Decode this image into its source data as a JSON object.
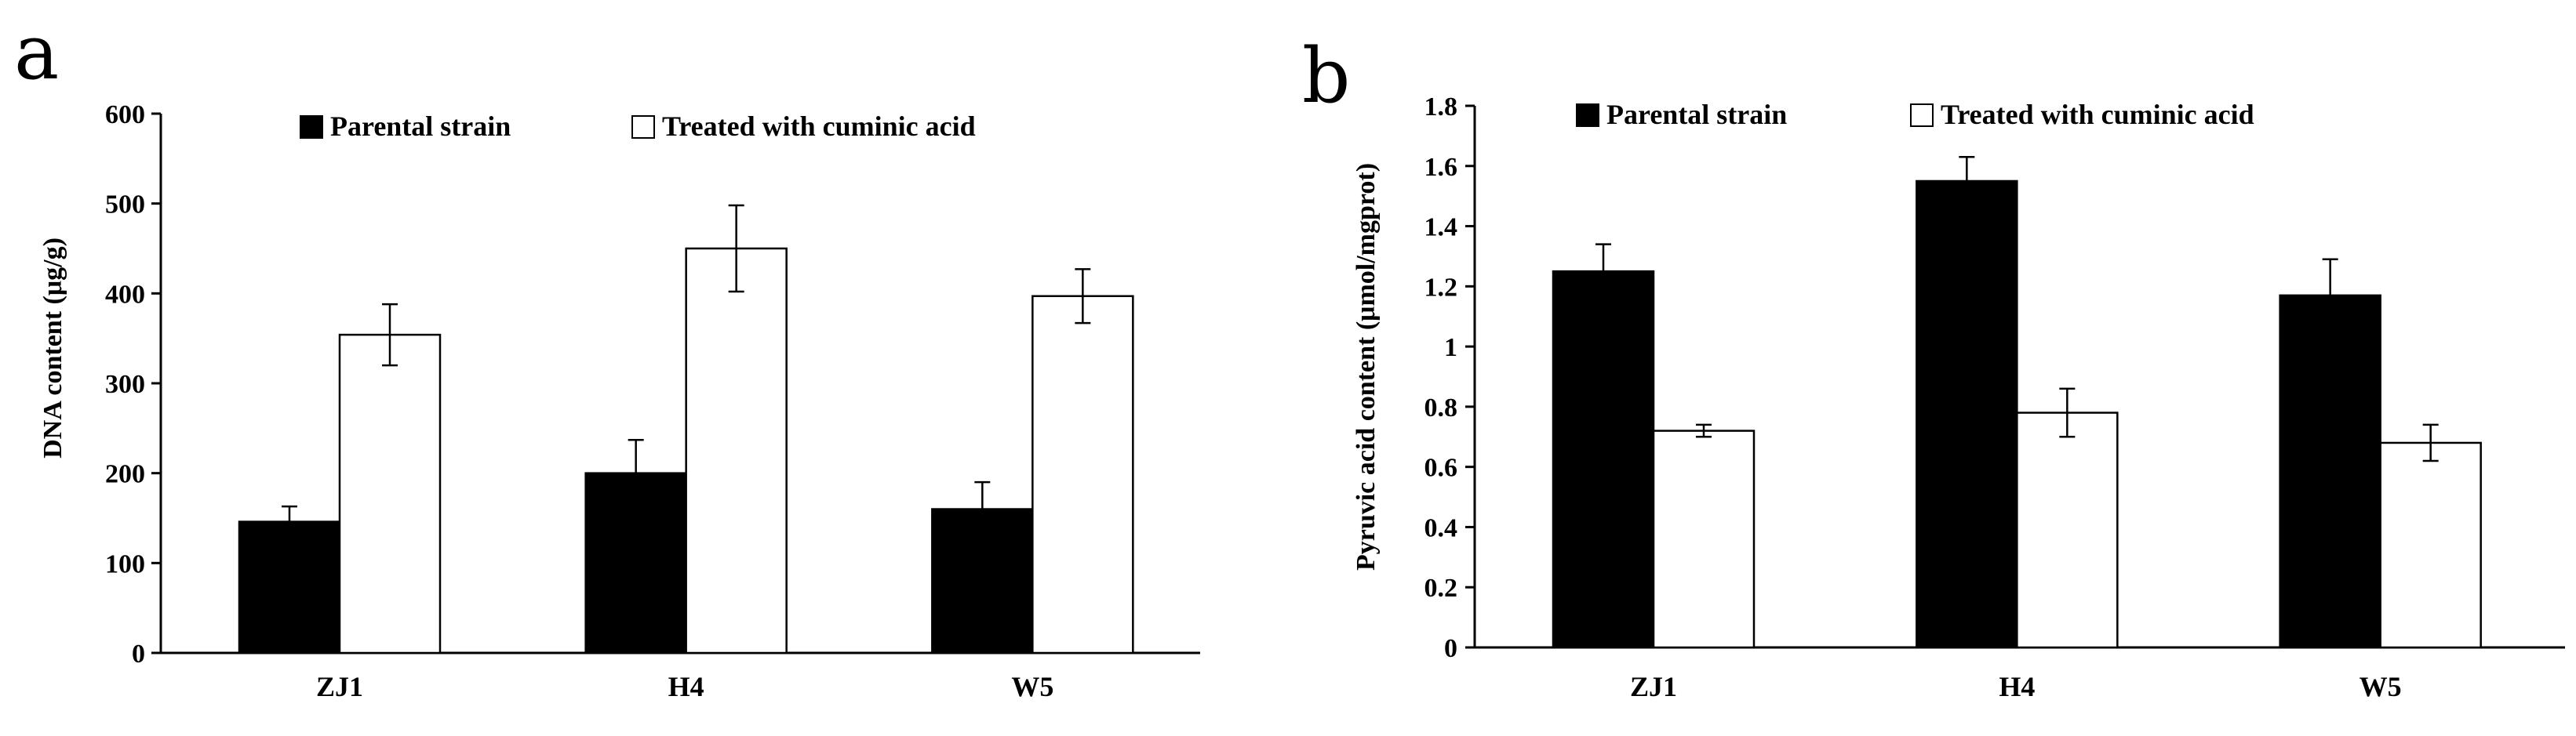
{
  "chart_data": [
    {
      "type": "bar",
      "panel_label": "a",
      "title": "",
      "xlabel": "",
      "ylabel": "DNA content (μg/g)",
      "ylim": [
        0,
        600
      ],
      "yticks": [
        "0",
        "100",
        "200",
        "300",
        "400",
        "500",
        "600"
      ],
      "categories": [
        "ZJ1",
        "H4",
        "W5"
      ],
      "legend_position": "top",
      "series": [
        {
          "name": "Parental strain",
          "color": "#000000",
          "values": [
            146,
            200,
            160
          ],
          "errors": [
            17,
            37,
            30
          ]
        },
        {
          "name": "Treated with cuminic acid",
          "color": "#ffffff",
          "values": [
            354,
            450,
            397
          ],
          "errors": [
            34,
            48,
            30
          ]
        }
      ]
    },
    {
      "type": "bar",
      "panel_label": "b",
      "title": "",
      "xlabel": "",
      "ylabel": "Pyruvic acid content (μmol/mgprot)",
      "ylim": [
        0,
        1.8
      ],
      "yticks": [
        "0",
        "0.2",
        "0.4",
        "0.6",
        "0.8",
        "1",
        "1.2",
        "1.4",
        "1.6",
        "1.8"
      ],
      "categories": [
        "ZJ1",
        "H4",
        "W5"
      ],
      "legend_position": "top",
      "series": [
        {
          "name": "Parental strain",
          "color": "#000000",
          "values": [
            1.25,
            1.55,
            1.17
          ],
          "errors": [
            0.09,
            0.08,
            0.12
          ]
        },
        {
          "name": "Treated with cuminic acid",
          "color": "#ffffff",
          "values": [
            0.72,
            0.78,
            0.68
          ],
          "errors": [
            0.02,
            0.08,
            0.06
          ]
        }
      ]
    }
  ]
}
